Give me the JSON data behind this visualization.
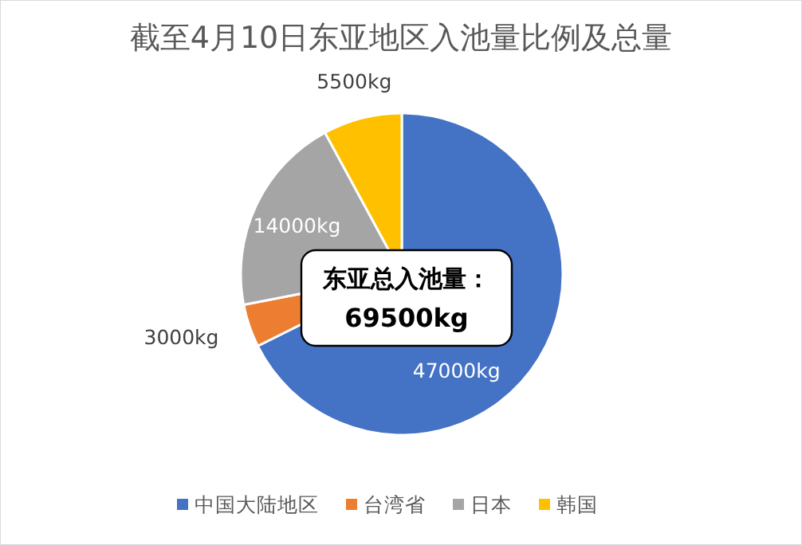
{
  "chart_data": {
    "type": "pie",
    "title": "截至4月10日东亚地区入池量比例及总量",
    "categories": [
      "中国大陆地区",
      "台湾省",
      "日本",
      "韩国"
    ],
    "values": [
      47000,
      3000,
      14000,
      5500
    ],
    "colors": [
      "#4472c4",
      "#ed7d31",
      "#a5a5a5",
      "#ffc000"
    ],
    "value_labels": [
      "47000kg",
      "3000kg",
      "14000kg",
      "5500kg"
    ],
    "annotations": [
      "东亚总入池量：",
      "69500kg"
    ],
    "legend": "bottom"
  }
}
